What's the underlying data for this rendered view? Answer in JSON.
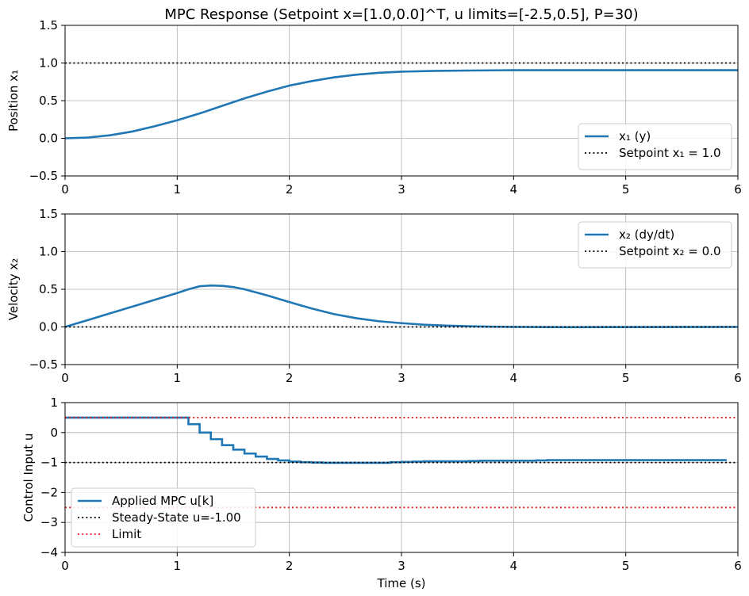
{
  "figure": {
    "title": "MPC Response (Setpoint x=[1.0,0.0]^T, u limits=[-2.5,0.5], P=30)",
    "xlabel": "Time (s)"
  },
  "colors": {
    "series": "#1f77b4",
    "setpoint": "#000000",
    "limit": "#e31a1c",
    "grid": "#b0b0b0"
  },
  "chart_data": [
    {
      "type": "line",
      "title": "MPC Response (Setpoint x=[1.0,0.0]^T, u limits=[-2.5,0.5], P=30)",
      "xlabel": "",
      "ylabel": "Position x₁",
      "xlim": [
        0,
        6
      ],
      "ylim": [
        -0.5,
        1.5
      ],
      "xticks": [
        0,
        1,
        2,
        3,
        4,
        5,
        6
      ],
      "yticks": [
        -0.5,
        0.0,
        0.5,
        1.0,
        1.5
      ],
      "grid": true,
      "legend_position": "lower-right",
      "series": [
        {
          "name": "x₁ (y)",
          "style": "solid",
          "color": "#1f77b4",
          "x": [
            0,
            0.2,
            0.4,
            0.6,
            0.8,
            1.0,
            1.2,
            1.4,
            1.6,
            1.8,
            2.0,
            2.2,
            2.4,
            2.6,
            2.8,
            3.0,
            3.3,
            3.6,
            4.0,
            4.5,
            5.0,
            5.5,
            6.0
          ],
          "y": [
            0,
            0.01,
            0.04,
            0.09,
            0.16,
            0.24,
            0.33,
            0.43,
            0.53,
            0.62,
            0.7,
            0.76,
            0.81,
            0.845,
            0.87,
            0.885,
            0.895,
            0.9,
            0.905,
            0.905,
            0.905,
            0.905,
            0.905
          ]
        },
        {
          "name": "Setpoint x₁ = 1.0",
          "style": "dotted",
          "color": "#000000",
          "x": [
            0,
            6
          ],
          "y": [
            1.0,
            1.0
          ]
        }
      ]
    },
    {
      "type": "line",
      "title": "",
      "xlabel": "",
      "ylabel": "Velocity x₂",
      "xlim": [
        0,
        6
      ],
      "ylim": [
        -0.5,
        1.5
      ],
      "xticks": [
        0,
        1,
        2,
        3,
        4,
        5,
        6
      ],
      "yticks": [
        -0.5,
        0.0,
        0.5,
        1.0,
        1.5
      ],
      "grid": true,
      "legend_position": "upper-right",
      "series": [
        {
          "name": "x₂ (dy/dt)",
          "style": "solid",
          "color": "#1f77b4",
          "x": [
            0,
            0.2,
            0.4,
            0.6,
            0.8,
            1.0,
            1.1,
            1.2,
            1.3,
            1.4,
            1.5,
            1.6,
            1.8,
            2.0,
            2.2,
            2.4,
            2.6,
            2.8,
            3.0,
            3.2,
            3.4,
            3.6,
            3.8,
            4.0,
            4.5,
            5.0,
            5.5,
            6.0
          ],
          "y": [
            0,
            0.09,
            0.18,
            0.27,
            0.36,
            0.45,
            0.5,
            0.54,
            0.55,
            0.545,
            0.53,
            0.5,
            0.42,
            0.33,
            0.245,
            0.17,
            0.115,
            0.075,
            0.05,
            0.03,
            0.018,
            0.009,
            0.003,
            0.0,
            -0.003,
            -0.002,
            -0.001,
            0.0
          ]
        },
        {
          "name": "Setpoint x₂ = 0.0",
          "style": "dotted",
          "color": "#000000",
          "x": [
            0,
            6
          ],
          "y": [
            0.0,
            0.0
          ]
        }
      ]
    },
    {
      "type": "line",
      "title": "",
      "xlabel": "Time (s)",
      "ylabel": "Control Input u",
      "xlim": [
        0,
        6
      ],
      "ylim": [
        -4,
        1
      ],
      "xticks": [
        0,
        1,
        2,
        3,
        4,
        5,
        6
      ],
      "yticks": [
        -4,
        -3,
        -2,
        -1,
        0,
        1
      ],
      "grid": true,
      "legend_position": "lower-left",
      "series": [
        {
          "name": "Applied MPC u[k]",
          "style": "step",
          "color": "#1f77b4",
          "x": [
            0,
            1.1,
            1.2,
            1.3,
            1.4,
            1.5,
            1.6,
            1.7,
            1.8,
            1.9,
            2.0,
            2.1,
            2.2,
            2.3,
            2.9,
            3.0,
            3.1,
            3.2,
            3.6,
            3.7,
            4.2,
            4.3,
            5.9
          ],
          "y": [
            0.5,
            0.28,
            0.0,
            -0.22,
            -0.42,
            -0.57,
            -0.7,
            -0.8,
            -0.88,
            -0.93,
            -0.97,
            -0.99,
            -1.0,
            -1.01,
            -0.99,
            -0.98,
            -0.97,
            -0.96,
            -0.95,
            -0.94,
            -0.93,
            -0.92,
            -0.92
          ]
        },
        {
          "name": "Steady-State u=-1.00",
          "style": "dotted",
          "color": "#000000",
          "x": [
            0,
            6
          ],
          "y": [
            -1.0,
            -1.0
          ]
        },
        {
          "name": "Limit",
          "style": "dotted",
          "color": "#e31a1c",
          "x": [
            0,
            6
          ],
          "y": [
            0.5,
            0.5
          ]
        },
        {
          "name": "",
          "style": "dotted",
          "color": "#e31a1c",
          "x": [
            0,
            6
          ],
          "y": [
            -2.5,
            -2.5
          ]
        }
      ]
    }
  ]
}
